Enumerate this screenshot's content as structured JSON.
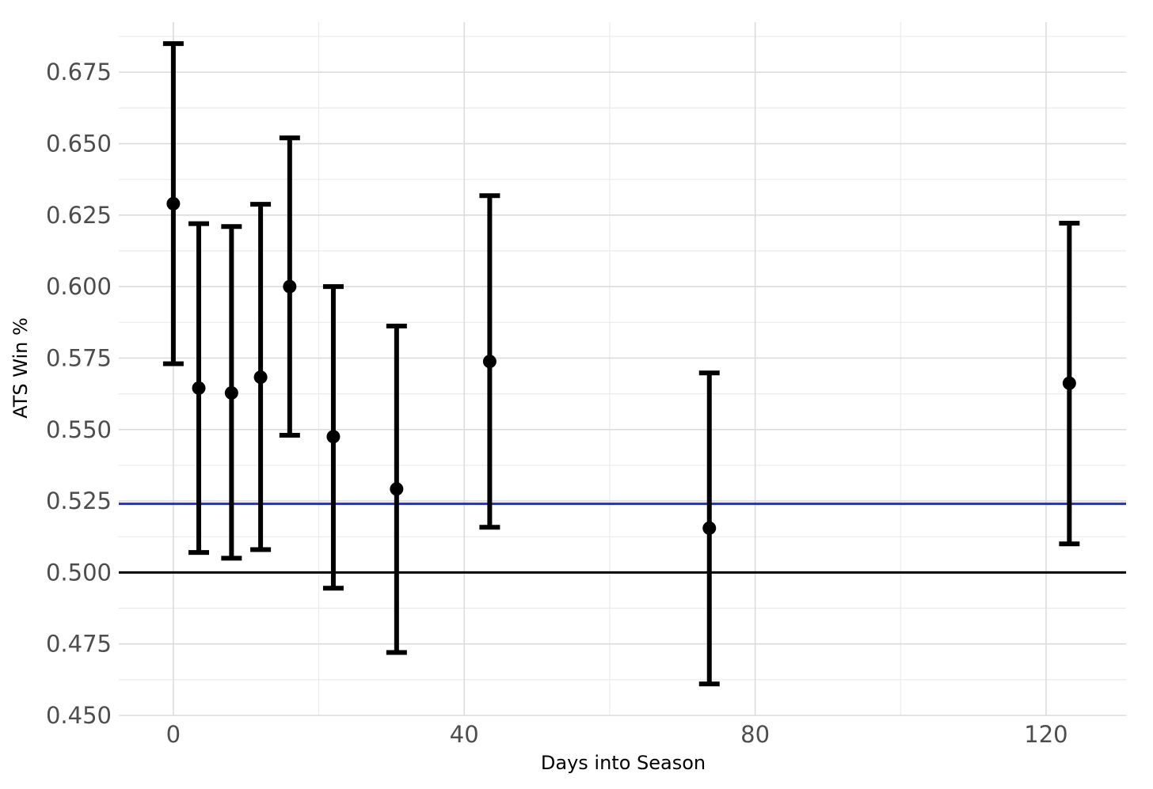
{
  "chart_data": {
    "type": "scatter",
    "title": "",
    "xlabel": "Days into Season",
    "ylabel": "ATS Win %",
    "xlim": [
      -7.5,
      131
    ],
    "ylim": [
      0.45,
      0.6925
    ],
    "x_ticks": [
      0,
      40,
      80,
      120
    ],
    "x_tick_labels": [
      "0",
      "40",
      "80",
      "120"
    ],
    "y_ticks": [
      0.45,
      0.475,
      0.5,
      0.525,
      0.55,
      0.575,
      0.6,
      0.625,
      0.65,
      0.675
    ],
    "y_tick_labels": [
      "0.450",
      "0.475",
      "0.500",
      "0.525",
      "0.550",
      "0.575",
      "0.600",
      "0.625",
      "0.650",
      "0.675"
    ],
    "grid": true,
    "legend": "none",
    "series": [
      {
        "points": [
          {
            "x": 0,
            "y": 0.629,
            "ymin": 0.573,
            "ymax": 0.685
          },
          {
            "x": 3.5,
            "y": 0.5645,
            "ymin": 0.507,
            "ymax": 0.622
          },
          {
            "x": 8,
            "y": 0.5628,
            "ymin": 0.505,
            "ymax": 0.621
          },
          {
            "x": 12,
            "y": 0.5683,
            "ymin": 0.508,
            "ymax": 0.6288
          },
          {
            "x": 16,
            "y": 0.6,
            "ymin": 0.548,
            "ymax": 0.652
          },
          {
            "x": 22,
            "y": 0.5475,
            "ymin": 0.4945,
            "ymax": 0.6
          },
          {
            "x": 30.7,
            "y": 0.5292,
            "ymin": 0.472,
            "ymax": 0.5862
          },
          {
            "x": 43.5,
            "y": 0.5738,
            "ymin": 0.5158,
            "ymax": 0.6318
          },
          {
            "x": 73.7,
            "y": 0.5155,
            "ymin": 0.461,
            "ymax": 0.5698
          },
          {
            "x": 123.2,
            "y": 0.5662,
            "ymin": 0.51,
            "ymax": 0.6222
          }
        ]
      }
    ],
    "reference_lines": [
      {
        "y": 0.5,
        "color": "#000000"
      },
      {
        "y": 0.524,
        "color": "#1f2fd6"
      }
    ]
  }
}
